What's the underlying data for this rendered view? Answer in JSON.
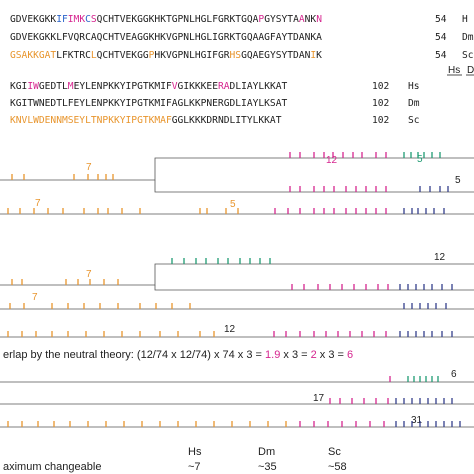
{
  "colors": {
    "black": "#222222",
    "magenta": "#d6258f",
    "orange": "#e8952d",
    "green": "#1e9b72",
    "navy": "#343f8c",
    "purple": "#9b3ea8",
    "blue": "#2a63c9"
  },
  "alignment": {
    "block1": [
      {
        "species": "Hs",
        "end": "54",
        "segments": [
          [
            "GDVEKGKK",
            "k"
          ],
          [
            "IF",
            "b"
          ],
          [
            "IMK",
            "m"
          ],
          [
            "C",
            "b"
          ],
          [
            "S",
            "m"
          ],
          [
            "QCHTVEKGGKHKTGPNLHGLFGRKTGQA",
            "k"
          ],
          [
            "P",
            "m"
          ],
          [
            "GYSYTA",
            "k"
          ],
          [
            "A",
            "m"
          ],
          [
            "NK",
            "k"
          ],
          [
            "N",
            "m"
          ]
        ]
      },
      {
        "species": "Dm",
        "end": "54",
        "segments": [
          [
            "GDVEKGKKLFVQRCAQCHTVEAGGKHKVGPNLHGLIGRKTGQAAGFAYTDANKA",
            "k"
          ]
        ]
      },
      {
        "species": "Sc",
        "end": "54",
        "segments": [
          [
            "GSAKKGAT",
            "o"
          ],
          [
            "LFKTRC",
            "k"
          ],
          [
            "L",
            "o"
          ],
          [
            "QCHTVEKGG",
            "k"
          ],
          [
            "P",
            "o"
          ],
          [
            "HKVGPNLHGIFGR",
            "k"
          ],
          [
            "HS",
            "o"
          ],
          [
            "GQAEGYSYTDAN",
            "k"
          ],
          [
            "I",
            "o"
          ],
          [
            "K",
            "k"
          ]
        ]
      }
    ],
    "block2": [
      {
        "species": "Hs",
        "end": "102",
        "segments": [
          [
            "KGI",
            "k"
          ],
          [
            "IW",
            "m"
          ],
          [
            "GEDTL",
            "k"
          ],
          [
            "M",
            "m"
          ],
          [
            "EYLENPKKYIPGTKMIF",
            "k"
          ],
          [
            "V",
            "m"
          ],
          [
            "GIKKKEE",
            "k"
          ],
          [
            "RA",
            "m"
          ],
          [
            "DLIAYLKKAT",
            "k"
          ]
        ]
      },
      {
        "species": "Dm",
        "end": "102",
        "segments": [
          [
            "KGITWNEDTLFEYLENPKKYIPGTKMIFAGLKKPNERGDLIAYLKSAT",
            "k"
          ]
        ]
      },
      {
        "species": "Sc",
        "end": "102",
        "segments": [
          [
            "KNVLWDENNMSEYLTNPKKYIPGTKMAF",
            "o"
          ],
          [
            "GGLKKKDRNDLITYLKKAT",
            "k"
          ]
        ]
      }
    ],
    "header_cols": [
      "Hs",
      "D"
    ],
    "side_labels": [
      "H",
      "Dm",
      "Sc"
    ]
  },
  "panel_a": {
    "top_labels": [
      "7",
      "12",
      "5"
    ],
    "lower_labels": [
      "7",
      "5",
      "5"
    ]
  },
  "panel_b": {
    "labels": [
      "7",
      "7",
      "12",
      "12"
    ]
  },
  "formula": {
    "prefix": "erlap by the neutral theory: (12/74 x 12/74) x 74 x 3 = ",
    "v1": "1.9",
    "x1": " x 3 = ",
    "v2": "2",
    "x2": " x 3 = ",
    "v3": "6"
  },
  "panel_c": {
    "labels": [
      "6",
      "17",
      "31"
    ]
  },
  "footer": {
    "row_label": "aximum changeable",
    "columns": [
      {
        "name": "Hs",
        "value": "~7"
      },
      {
        "name": "Dm",
        "value": "~35"
      },
      {
        "name": "Sc",
        "value": "~58"
      }
    ]
  }
}
